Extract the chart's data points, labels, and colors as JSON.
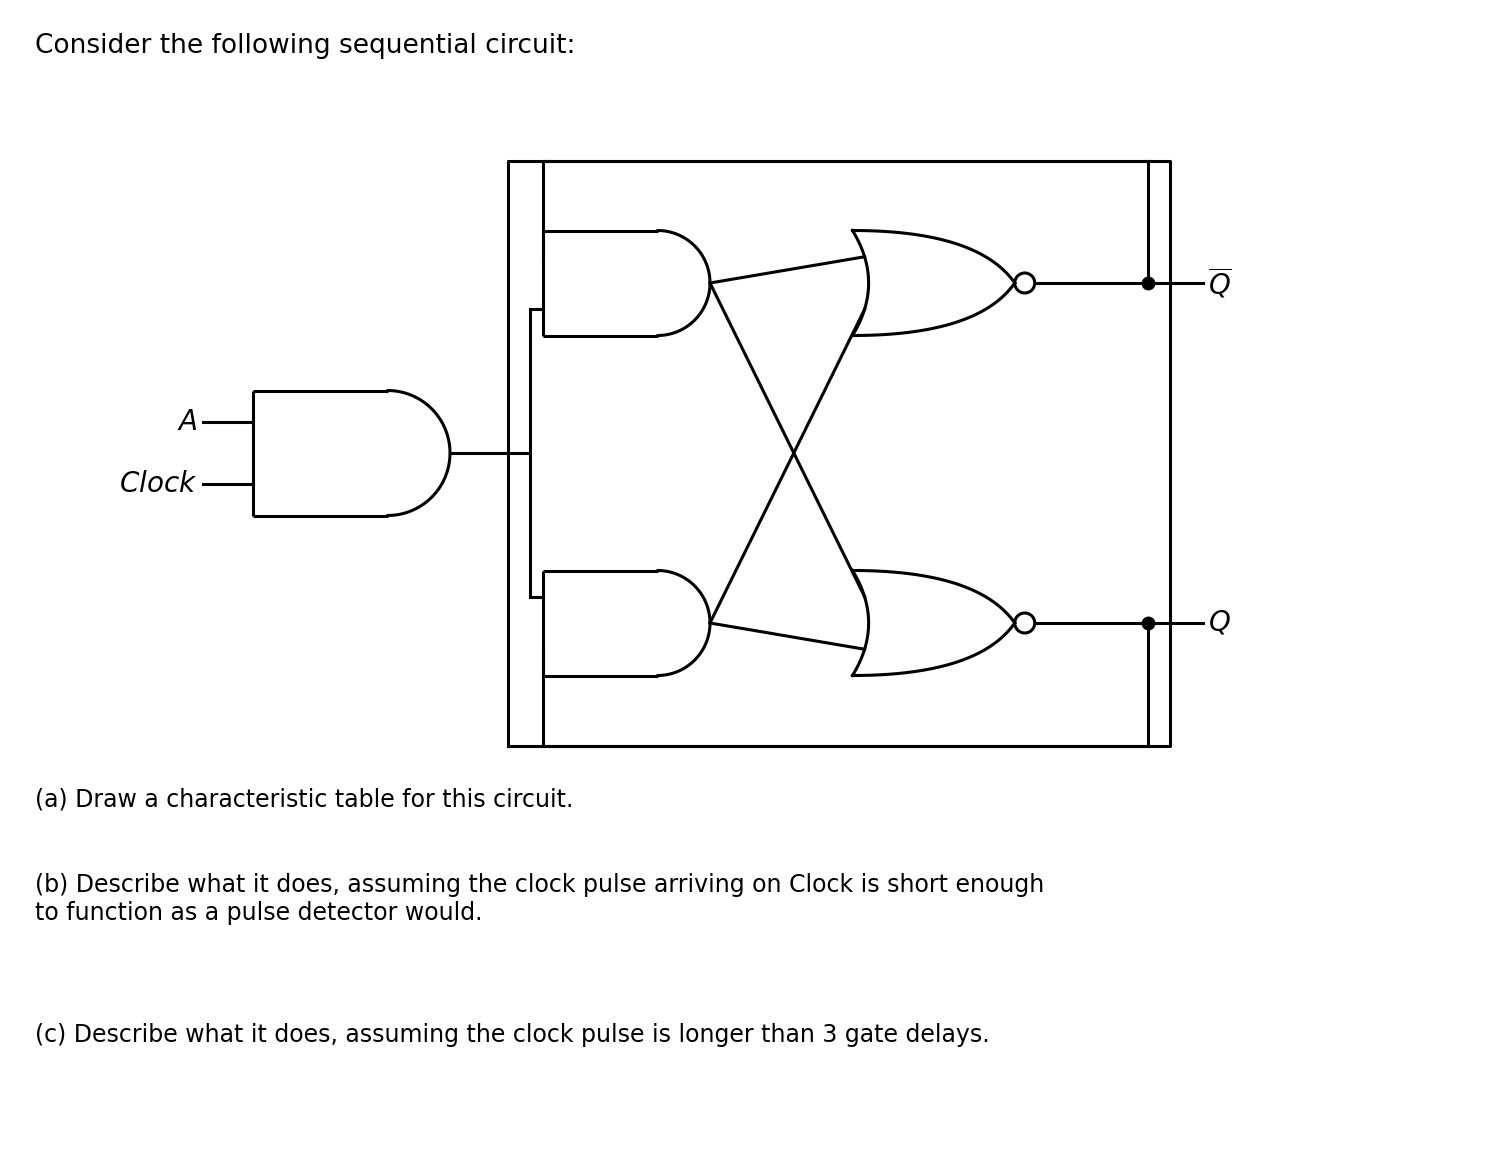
{
  "title": "Consider the following sequential circuit:",
  "title_fontsize": 19,
  "text_color": "#000000",
  "bg_color": "#ffffff",
  "line_width": 2.2,
  "text_a": "$A$",
  "text_clock": "$Clock$",
  "text_qbar_label": "$\\overline{Q}$",
  "text_q_label": "$Q$",
  "qa_label": "(a) Draw a characteristic table for this circuit.",
  "qb_label": "(b) Describe what it does, assuming the clock pulse arriving on Clock is short enough\nto function as a pulse detector would.",
  "qc_label": "(c) Describe what it does, assuming the clock pulse is longer than 3 gate delays.",
  "qa_fontsize": 17,
  "qb_fontsize": 17,
  "qc_fontsize": 17
}
